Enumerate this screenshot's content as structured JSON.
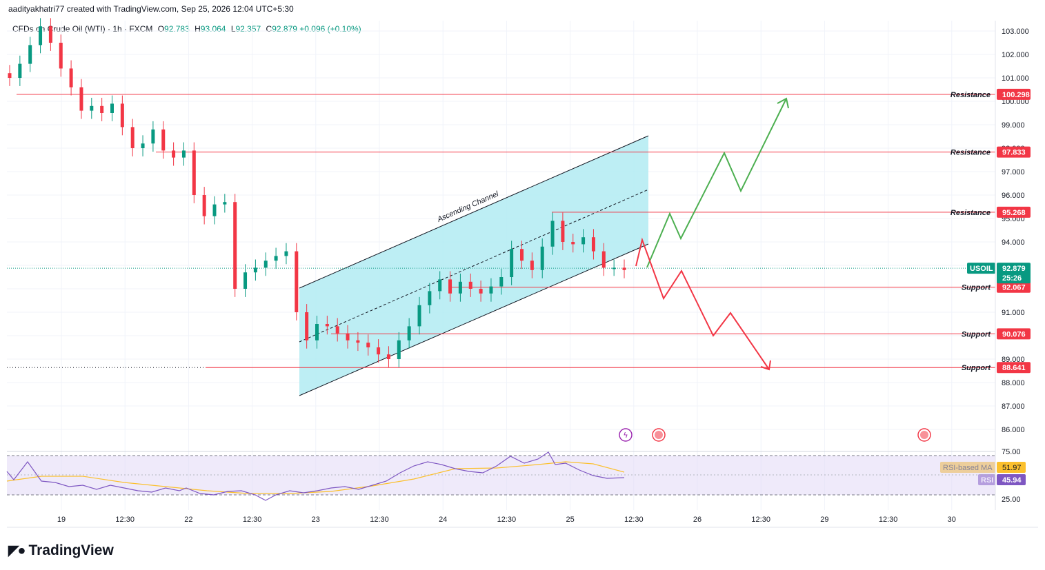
{
  "credit": "aadityakhatri77 created with TradingView.com, Sep 25, 2026 12:04 UTC+5:30",
  "legend": {
    "symbol": "CFDs on Crude Oil (WTI) · 1h · FXCM",
    "o_label": "O",
    "o": "92.783",
    "h_label": "H",
    "h": "93.064",
    "l_label": "L",
    "l": "92.357",
    "c_label": "C",
    "c": "92.879",
    "change": "+0.096 (+0.10%)"
  },
  "brand": "TradingView",
  "colors": {
    "up": "#089981",
    "down": "#f23645",
    "channel_fill": "#b2ebf2",
    "level_line": "#f23645",
    "projection_up": "#4caf50",
    "projection_down": "#f23645",
    "rsi": "#7e57c2",
    "rsi_ma": "#fbc02d"
  },
  "chart_data": {
    "type": "candlestick",
    "symbol": "USOIL",
    "interval": "1h",
    "y_ticks": [
      103,
      102,
      101,
      100,
      99,
      98,
      97,
      96,
      95,
      94,
      93,
      92,
      91,
      90,
      89,
      88,
      87,
      86
    ],
    "y_tick_labels": [
      "103.000",
      "102.000",
      "101.000",
      "100.000",
      "99.000",
      "98.000",
      "97.000",
      "96.000",
      "95.000",
      "94.000",
      "93.000",
      "92.000",
      "91.000",
      "90.000",
      "89.000",
      "88.000",
      "87.000",
      "86.000"
    ],
    "x_labels": [
      "19",
      "12:30",
      "22",
      "12:30",
      "23",
      "12:30",
      "24",
      "12:30",
      "25",
      "12:30",
      "26",
      "12:30",
      "29",
      "12:30",
      "30"
    ],
    "levels": [
      {
        "name": "Resistance",
        "value": "100.298"
      },
      {
        "name": "Resistance",
        "value": "97.833"
      },
      {
        "name": "Resistance",
        "value": "95.268"
      },
      {
        "name": "Support",
        "value": "92.067"
      },
      {
        "name": "Support",
        "value": "90.076"
      },
      {
        "name": "Support",
        "value": "88.641"
      }
    ],
    "current": {
      "symbol": "USOIL",
      "price": "92.879",
      "countdown": "25:26"
    },
    "annotation": "Ascending Channel",
    "closes": [
      101.0,
      101.6,
      102.4,
      103.2,
      102.5,
      101.4,
      100.6,
      99.6,
      99.8,
      99.5,
      99.9,
      98.9,
      98.0,
      98.2,
      98.8,
      97.9,
      97.6,
      97.9,
      96.0,
      95.1,
      95.6,
      95.7,
      92.0,
      92.7,
      92.9,
      93.2,
      93.4,
      93.6,
      91.0,
      89.8,
      90.5,
      90.4,
      90.1,
      89.8,
      89.7,
      89.5,
      89.2,
      89.0,
      89.8,
      90.4,
      91.3,
      91.9,
      92.4,
      91.8,
      92.3,
      92.0,
      91.8,
      92.1,
      92.5,
      93.7,
      93.2,
      92.8,
      93.8,
      94.9,
      94.0,
      93.9,
      94.2,
      93.6,
      92.9,
      92.9,
      92.8
    ],
    "rsi": {
      "label": "RSI",
      "value": "45.94",
      "levels": [
        "75.00",
        "25.00"
      ]
    },
    "rsi_ma": {
      "label": "RSI-based MA",
      "value": "51.97"
    }
  }
}
